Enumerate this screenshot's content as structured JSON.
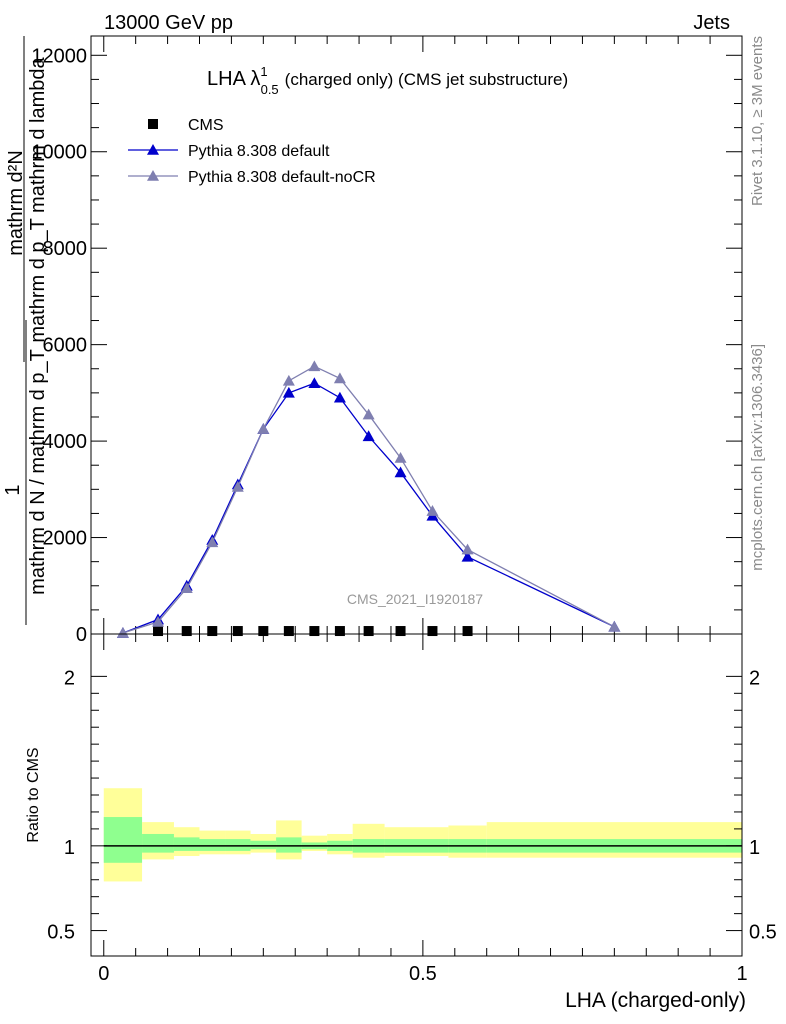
{
  "header": {
    "energy_label": "13000 GeV pp",
    "process_label": "Jets"
  },
  "side_labels": {
    "rivet": "Rivet 3.1.10, ≥ 3M events",
    "mcplots": "mcplots.cern.ch [arXiv:1306.3436]"
  },
  "chart_data": [
    {
      "type": "line",
      "title": "LHA λ¹₀.₅ (charged only) (CMS jet substructure)",
      "title_main": "LHA λ",
      "title_sup": "1",
      "title_sub": "0.5",
      "title_rest": "(charged only) (CMS jet substructure)",
      "watermark": "CMS_2021_I1920187",
      "ylabel_top": "mathrm d²N",
      "ylabel_denominator": "mathrm d p_T mathrm d lambda",
      "ylabel_one": "1",
      "ylabel_bottom": "mathrm d N / mathrm d p_T",
      "ylim": [
        0,
        12400
      ],
      "xlim": [
        -0.02,
        1.0
      ],
      "yticks": [
        0,
        2000,
        4000,
        6000,
        8000,
        10000,
        12000
      ],
      "ytick_labels": [
        "0",
        "2000",
        "4000",
        "6000",
        "8000",
        "10000",
        "12000"
      ],
      "legend_position": "top-left",
      "series": [
        {
          "name": "CMS",
          "color": "#000000",
          "marker": "square",
          "x": [
            0.085,
            0.13,
            0.17,
            0.21,
            0.25,
            0.29,
            0.33,
            0.37,
            0.415,
            0.465,
            0.515,
            0.57
          ],
          "values": [
            20,
            20,
            20,
            20,
            20,
            20,
            20,
            20,
            20,
            20,
            20,
            20
          ]
        },
        {
          "name": "Pythia 8.308 default",
          "color": "#0000cc",
          "marker": "triangle",
          "x": [
            0.03,
            0.085,
            0.13,
            0.17,
            0.21,
            0.25,
            0.29,
            0.33,
            0.37,
            0.415,
            0.465,
            0.515,
            0.57,
            0.8
          ],
          "values": [
            20,
            300,
            1000,
            1950,
            3100,
            4250,
            5000,
            5200,
            4900,
            4100,
            3350,
            2450,
            1600,
            150
          ]
        },
        {
          "name": "Pythia 8.308 default-noCR",
          "color": "#7f7fb0",
          "marker": "triangle",
          "x": [
            0.03,
            0.085,
            0.13,
            0.17,
            0.21,
            0.25,
            0.29,
            0.33,
            0.37,
            0.415,
            0.465,
            0.515,
            0.57,
            0.8
          ],
          "values": [
            20,
            250,
            950,
            1900,
            3050,
            4250,
            5250,
            5550,
            5300,
            4550,
            3650,
            2550,
            1750,
            150
          ]
        }
      ]
    },
    {
      "type": "area",
      "ylabel": "Ratio to CMS",
      "xlabel": "LHA (charged-only)",
      "xlim": [
        -0.02,
        1.0
      ],
      "ylim": [
        0.35,
        2.25
      ],
      "xticks": [
        0,
        0.5,
        1
      ],
      "xtick_labels": [
        "0",
        "0.5",
        "1"
      ],
      "yticks": [
        0.5,
        1,
        2
      ],
      "ytick_labels": [
        "0.5",
        "1",
        "2"
      ],
      "reference_line": 1,
      "colors": {
        "inner_band": "#8fff8f",
        "outer_band": "#ffff99"
      },
      "bins": [
        {
          "x0": 0.0,
          "x1": 0.06,
          "inner": [
            0.9,
            1.17
          ],
          "outer": [
            0.79,
            1.34
          ]
        },
        {
          "x0": 0.06,
          "x1": 0.11,
          "inner": [
            0.96,
            1.07
          ],
          "outer": [
            0.92,
            1.14
          ]
        },
        {
          "x0": 0.11,
          "x1": 0.15,
          "inner": [
            0.97,
            1.05
          ],
          "outer": [
            0.94,
            1.11
          ]
        },
        {
          "x0": 0.15,
          "x1": 0.19,
          "inner": [
            0.97,
            1.04
          ],
          "outer": [
            0.95,
            1.09
          ]
        },
        {
          "x0": 0.19,
          "x1": 0.23,
          "inner": [
            0.97,
            1.04
          ],
          "outer": [
            0.95,
            1.09
          ]
        },
        {
          "x0": 0.23,
          "x1": 0.27,
          "inner": [
            0.98,
            1.03
          ],
          "outer": [
            0.96,
            1.07
          ]
        },
        {
          "x0": 0.27,
          "x1": 0.31,
          "inner": [
            0.96,
            1.05
          ],
          "outer": [
            0.92,
            1.15
          ]
        },
        {
          "x0": 0.31,
          "x1": 0.35,
          "inner": [
            0.98,
            1.02
          ],
          "outer": [
            0.97,
            1.06
          ]
        },
        {
          "x0": 0.35,
          "x1": 0.39,
          "inner": [
            0.97,
            1.03
          ],
          "outer": [
            0.95,
            1.07
          ]
        },
        {
          "x0": 0.39,
          "x1": 0.44,
          "inner": [
            0.96,
            1.04
          ],
          "outer": [
            0.93,
            1.13
          ]
        },
        {
          "x0": 0.44,
          "x1": 0.49,
          "inner": [
            0.96,
            1.04
          ],
          "outer": [
            0.94,
            1.11
          ]
        },
        {
          "x0": 0.49,
          "x1": 0.54,
          "inner": [
            0.96,
            1.04
          ],
          "outer": [
            0.94,
            1.11
          ]
        },
        {
          "x0": 0.54,
          "x1": 0.6,
          "inner": [
            0.96,
            1.04
          ],
          "outer": [
            0.93,
            1.12
          ]
        },
        {
          "x0": 0.6,
          "x1": 1.0,
          "inner": [
            0.96,
            1.04
          ],
          "outer": [
            0.93,
            1.14
          ]
        }
      ]
    }
  ]
}
